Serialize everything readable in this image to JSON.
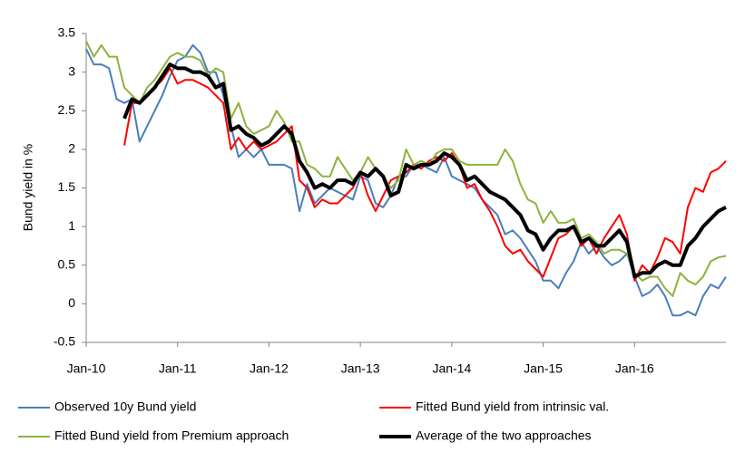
{
  "chart_data": {
    "type": "line",
    "y_label": "Bund yield in  %",
    "categories": [
      "Jan-10",
      null,
      null,
      null,
      null,
      null,
      null,
      null,
      null,
      null,
      null,
      null,
      "Jan-11",
      null,
      null,
      null,
      null,
      null,
      null,
      null,
      null,
      null,
      null,
      null,
      "Jan-12",
      null,
      null,
      null,
      null,
      null,
      null,
      null,
      null,
      null,
      null,
      null,
      "Jan-13",
      null,
      null,
      null,
      null,
      null,
      null,
      null,
      null,
      null,
      null,
      null,
      "Jan-14",
      null,
      null,
      null,
      null,
      null,
      null,
      null,
      null,
      null,
      null,
      null,
      "Jan-15",
      null,
      null,
      null,
      null,
      null,
      null,
      null,
      null,
      null,
      null,
      null,
      "Jan-16",
      null,
      null,
      null,
      null,
      null,
      null,
      null,
      null,
      null,
      null,
      null,
      null
    ],
    "ylim": [
      -0.5,
      3.5
    ],
    "yticks": [
      3.5,
      3,
      2.5,
      2,
      1.5,
      1,
      0.5,
      0,
      -0.5
    ],
    "grid": false,
    "series": [
      {
        "name": "Observed 10y Bund yield",
        "color": "#4a7ebb",
        "width": 2,
        "values": [
          3.3,
          3.1,
          3.1,
          3.05,
          2.65,
          2.6,
          2.65,
          2.1,
          2.3,
          2.5,
          2.7,
          2.95,
          3.15,
          3.2,
          3.35,
          3.25,
          3.0,
          3.0,
          2.7,
          2.3,
          1.9,
          2.0,
          1.9,
          2.0,
          1.8,
          1.8,
          1.8,
          1.75,
          1.2,
          1.55,
          1.3,
          1.4,
          1.5,
          1.45,
          1.4,
          1.35,
          1.65,
          1.6,
          1.3,
          1.25,
          1.4,
          1.65,
          1.65,
          1.8,
          1.8,
          1.75,
          1.7,
          1.9,
          1.65,
          1.6,
          1.55,
          1.5,
          1.35,
          1.25,
          1.15,
          0.9,
          0.95,
          0.85,
          0.7,
          0.55,
          0.3,
          0.3,
          0.2,
          0.4,
          0.55,
          0.8,
          0.65,
          0.75,
          0.6,
          0.5,
          0.55,
          0.65,
          0.35,
          0.1,
          0.15,
          0.25,
          0.1,
          -0.15,
          -0.15,
          -0.1,
          -0.15,
          0.1,
          0.25,
          0.2,
          0.35
        ]
      },
      {
        "name": "Fitted Bund yield from intrinsic val.",
        "color": "#ff0000",
        "width": 2,
        "values": [
          null,
          null,
          null,
          null,
          null,
          2.05,
          2.6,
          2.6,
          2.7,
          2.8,
          2.9,
          3.05,
          2.85,
          2.9,
          2.9,
          2.85,
          2.8,
          2.7,
          2.6,
          2.0,
          2.15,
          2.0,
          2.1,
          2.0,
          2.05,
          2.1,
          2.2,
          2.3,
          1.6,
          1.5,
          1.25,
          1.35,
          1.3,
          1.3,
          1.4,
          1.5,
          1.7,
          1.4,
          1.2,
          1.4,
          1.6,
          1.65,
          1.7,
          1.8,
          1.75,
          1.85,
          1.9,
          1.85,
          1.95,
          1.8,
          1.5,
          1.55,
          1.35,
          1.2,
          1.0,
          0.75,
          0.65,
          0.7,
          0.55,
          0.45,
          0.35,
          0.6,
          0.85,
          0.9,
          1.0,
          0.75,
          0.85,
          0.65,
          0.85,
          1.0,
          1.15,
          0.9,
          0.3,
          0.5,
          0.4,
          0.6,
          0.85,
          0.8,
          0.65,
          1.25,
          1.5,
          1.45,
          1.7,
          1.75,
          1.85
        ]
      },
      {
        "name": "Fitted Bund yield from Premium approach",
        "color": "#8db33e",
        "width": 2,
        "values": [
          3.4,
          3.2,
          3.35,
          3.2,
          3.2,
          2.8,
          2.7,
          2.6,
          2.8,
          2.9,
          3.05,
          3.2,
          3.25,
          3.2,
          3.2,
          3.15,
          2.95,
          3.05,
          3.0,
          2.4,
          2.6,
          2.3,
          2.2,
          2.25,
          2.3,
          2.5,
          2.35,
          2.1,
          2.1,
          1.8,
          1.75,
          1.65,
          1.65,
          1.9,
          1.75,
          1.6,
          1.7,
          1.9,
          1.75,
          1.65,
          1.5,
          1.6,
          2.0,
          1.8,
          1.85,
          1.8,
          1.95,
          2.0,
          2.0,
          1.85,
          1.8,
          1.8,
          1.8,
          1.8,
          1.8,
          2.0,
          1.85,
          1.55,
          1.35,
          1.3,
          1.05,
          1.2,
          1.05,
          1.05,
          1.1,
          0.85,
          0.9,
          0.8,
          0.65,
          0.7,
          0.7,
          0.65,
          0.4,
          0.3,
          0.35,
          0.35,
          0.2,
          0.1,
          0.4,
          0.3,
          0.25,
          0.35,
          0.55,
          0.6,
          0.62
        ]
      },
      {
        "name": "Average of the two approaches",
        "color": "#000000",
        "width": 4,
        "values": [
          null,
          null,
          null,
          null,
          null,
          2.4,
          2.65,
          2.6,
          2.7,
          2.8,
          2.95,
          3.1,
          3.05,
          3.05,
          3.0,
          3.0,
          2.95,
          2.8,
          2.85,
          2.25,
          2.3,
          2.2,
          2.15,
          2.05,
          2.1,
          2.2,
          2.3,
          2.2,
          1.85,
          1.7,
          1.5,
          1.55,
          1.5,
          1.6,
          1.6,
          1.55,
          1.7,
          1.65,
          1.75,
          1.65,
          1.4,
          1.45,
          1.8,
          1.75,
          1.8,
          1.8,
          1.85,
          1.95,
          1.9,
          1.8,
          1.6,
          1.65,
          1.55,
          1.45,
          1.4,
          1.35,
          1.25,
          1.15,
          0.95,
          0.9,
          0.7,
          0.85,
          0.95,
          0.95,
          1.0,
          0.8,
          0.85,
          0.75,
          0.75,
          0.85,
          0.95,
          0.8,
          0.35,
          0.4,
          0.4,
          0.5,
          0.55,
          0.5,
          0.5,
          0.75,
          0.85,
          1.0,
          1.1,
          1.2,
          1.25
        ]
      }
    ]
  }
}
